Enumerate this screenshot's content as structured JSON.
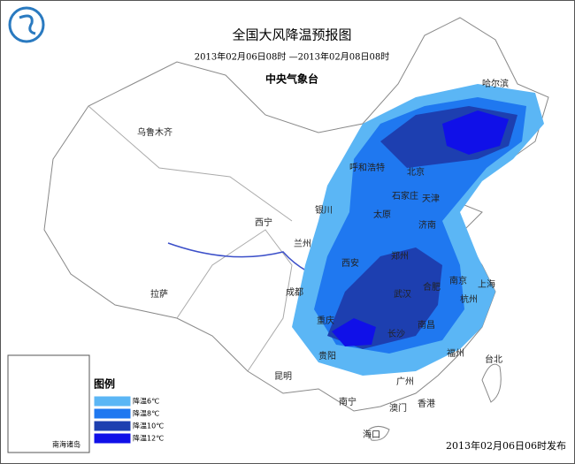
{
  "header": {
    "title": "全国大风降温预报图",
    "period": "2013年02月06日08时 —2013年02月08日08时",
    "issuer": "中央气象台"
  },
  "cities": [
    "哈尔滨",
    "乌鲁木齐",
    "呼和浩特",
    "北京",
    "石家庄",
    "天津",
    "银川",
    "太原",
    "济南",
    "西宁",
    "兰州",
    "西安",
    "郑州",
    "合肥",
    "南京",
    "上海",
    "成都",
    "武汉",
    "杭州",
    "拉萨",
    "重庆",
    "长沙",
    "南昌",
    "贵阳",
    "福州",
    "台北",
    "昆明",
    "广州",
    "南宁",
    "澳门",
    "香港",
    "海口"
  ],
  "inset": {
    "label": "南海诸岛"
  },
  "legend": {
    "title": "图例",
    "items": [
      {
        "label": "降温6℃",
        "color": "#5bb6f5"
      },
      {
        "label": "降温8℃",
        "color": "#1f78f0"
      },
      {
        "label": "降温10℃",
        "color": "#1d3fb0"
      },
      {
        "label": "降温12℃",
        "color": "#1010e8"
      }
    ]
  },
  "footer": {
    "published": "2013年02月06日06时发布"
  }
}
